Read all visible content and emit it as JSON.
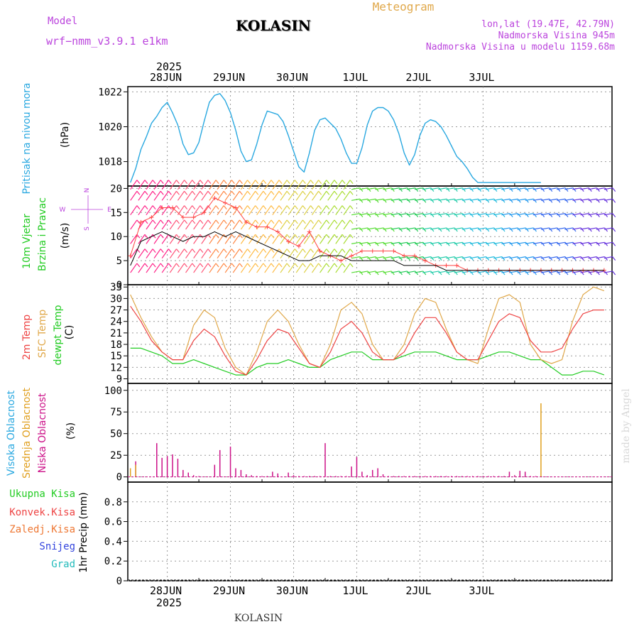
{
  "header": {
    "model_label": "Model",
    "model_name": "wrf−nmm_v3.9.1  e1km",
    "station": "KOLASIN",
    "product": "Meteogram",
    "coords": "lon,lat (19.47E, 42.79N)",
    "elevation": "Nadmorska Visina 945m",
    "model_elevation": "Nadmorska Visina u modelu 1159.68m"
  },
  "top_axis": {
    "year": "2025",
    "days": [
      "28JUN",
      "29JUN",
      "30JUN",
      "1JUL",
      "2JUL",
      "3JUL"
    ]
  },
  "bottom_axis": {
    "year": "2025",
    "days": [
      "28JUN",
      "29JUN",
      "30JUN",
      "1JUL",
      "2JUL",
      "3JUL"
    ]
  },
  "footer": "KOLASIN",
  "watermark": "made by Angel",
  "colors": {
    "pressure": "#29a8e0",
    "t2m": "#ee4444",
    "sfc": "#e0a84a",
    "dewpt": "#22cc22",
    "high_cloud": "#29a8e0",
    "mid_cloud": "#e0a020",
    "low_cloud": "#cc1188",
    "purple_text": "#bb44dd",
    "gust": "#ff4444",
    "wind_line": "#000000"
  },
  "panels": {
    "pressure": {
      "labels": [
        "Pritisak na nivou mora"
      ],
      "unit": "(hPa)",
      "ticks": [
        "1018",
        "1020",
        "1022"
      ]
    },
    "wind": {
      "labels": [
        "10m Vjetar",
        "Brzina i Pravac"
      ],
      "unit": "(m/s)",
      "ticks": [
        "0",
        "5",
        "10",
        "15",
        "20"
      ],
      "compass_n": "N",
      "compass_s": "S",
      "compass_w": "W",
      "compass_e": "E"
    },
    "temp": {
      "labels": [
        "2m Temp",
        "SFC Temp",
        "dewpt Temp"
      ],
      "unit": "(C)",
      "ticks": [
        "9",
        "12",
        "15",
        "18",
        "21",
        "24",
        "27",
        "30",
        "33"
      ]
    },
    "cloud": {
      "labels": [
        "Visoka Oblacnost",
        "Srednja Oblacnost",
        "Niska Oblacnost"
      ],
      "unit": "(%)",
      "ticks": [
        "0",
        "25",
        "50",
        "75",
        "100"
      ]
    },
    "precip": {
      "legend": [
        "Ukupna Kisa",
        "Konvek.Kisa",
        "Zaledj.Kisa",
        "Snijeg",
        "Grad"
      ],
      "unit": "1hr Precip (mm)",
      "ticks": [
        "0",
        "0.2",
        "0.4",
        "0.6",
        "0.8"
      ]
    }
  },
  "chart_data": [
    {
      "type": "line",
      "title": "",
      "ylabel": "Pritisak na nivou mora (hPa)",
      "ylim": [
        1016.6,
        1022.3
      ],
      "x_unit": "hours since 28JUN 00 UTC",
      "series": [
        {
          "name": "Pritisak na nivou mora",
          "x": [
            -14,
            -12,
            -10,
            -8,
            -6,
            -4,
            -2,
            0,
            2,
            4,
            6,
            8,
            10,
            12,
            14,
            16,
            18,
            20,
            22,
            24,
            26,
            28,
            30,
            32,
            34,
            36,
            38,
            40,
            42,
            44,
            46,
            48,
            50,
            52,
            54,
            56,
            58,
            60,
            62,
            64,
            66,
            68,
            70,
            72,
            74,
            76,
            78,
            80,
            82,
            84,
            86,
            88,
            90,
            92,
            94,
            96,
            98,
            100,
            102,
            104,
            106,
            108,
            110,
            112,
            114,
            116,
            118,
            120,
            122,
            124,
            126,
            128,
            130,
            132,
            134,
            136,
            138,
            140,
            142,
            144,
            146,
            148,
            150,
            152,
            154,
            156,
            158,
            160,
            162,
            164,
            166
          ],
          "y": [
            1016.8,
            1017.6,
            1018.7,
            1019.4,
            1020.2,
            1020.6,
            1021.1,
            1021.4,
            1020.8,
            1020.1,
            1019.0,
            1018.4,
            1018.5,
            1019.1,
            1020.3,
            1021.4,
            1021.8,
            1021.9,
            1021.5,
            1020.8,
            1019.8,
            1018.6,
            1018.0,
            1018.1,
            1019.0,
            1020.1,
            1020.9,
            1020.8,
            1020.7,
            1020.3,
            1019.5,
            1018.6,
            1017.7,
            1017.4,
            1018.5,
            1019.8,
            1020.4,
            1020.5,
            1020.2,
            1019.9,
            1019.3,
            1018.5,
            1017.9,
            1017.9,
            1018.8,
            1020.1,
            1020.9,
            1021.1,
            1021.1,
            1020.9,
            1020.4,
            1019.6,
            1018.5,
            1017.8,
            1018.4,
            1019.5,
            1020.2,
            1020.4,
            1020.3,
            1020.0,
            1019.5,
            1018.9,
            1018.3,
            1018.0,
            1017.6,
            1017.1,
            1016.8,
            1016.8,
            1016.8,
            1016.8,
            1016.8,
            1016.8,
            1016.8,
            1016.8,
            1016.8,
            1016.8,
            1016.8,
            1016.8,
            1016.8,
            1016.8,
            1016.8,
            1016.8,
            1016.8,
            1016.8,
            1016.8,
            1016.8,
            1016.8,
            1016.8,
            1016.8,
            1016.8,
            1016.8
          ]
        }
      ]
    },
    {
      "type": "line",
      "title": "",
      "ylabel": "10m Vjetar Brzina i Pravac (m/s)",
      "ylim": [
        0,
        20
      ],
      "series": [
        {
          "name": "wind",
          "x": [
            -14,
            -10,
            -6,
            -2,
            2,
            6,
            10,
            14,
            18,
            22,
            26,
            30,
            34,
            38,
            42,
            46,
            50,
            54,
            58,
            62,
            66,
            70,
            74,
            78,
            82,
            86,
            90,
            94,
            98,
            102,
            106,
            110,
            114,
            118,
            122,
            126,
            130,
            134,
            138,
            142,
            146,
            150,
            154,
            158,
            162,
            166
          ],
          "y": [
            4,
            9,
            10,
            11,
            10,
            9,
            10,
            10,
            11,
            10,
            11,
            10,
            9,
            8,
            7,
            6,
            5,
            5,
            6,
            6,
            6,
            5,
            5,
            5,
            5,
            5,
            4,
            4,
            4,
            4,
            3,
            3,
            3,
            3,
            3,
            3,
            3,
            3,
            3,
            3,
            3,
            3,
            3,
            3,
            3,
            3
          ]
        },
        {
          "name": "gust",
          "x": [
            -14,
            -10,
            -6,
            -2,
            2,
            6,
            10,
            14,
            18,
            22,
            26,
            30,
            34,
            38,
            42,
            46,
            50,
            54,
            58,
            62,
            66,
            70,
            74,
            78,
            82,
            86,
            90,
            94,
            98,
            102,
            106,
            110,
            114,
            118,
            122,
            126,
            130,
            134,
            138,
            142,
            146,
            150,
            154,
            158,
            162,
            166
          ],
          "y": [
            6,
            13,
            14,
            16,
            16,
            14,
            14,
            15,
            18,
            17,
            16,
            13,
            12,
            12,
            11,
            9,
            8,
            11,
            7,
            6,
            5,
            6,
            7,
            7,
            7,
            7,
            6,
            6,
            5,
            4,
            4,
            4,
            3,
            3,
            3,
            3,
            3,
            3,
            3,
            3,
            3,
            3,
            3,
            3,
            3,
            3
          ]
        }
      ]
    },
    {
      "type": "line",
      "title": "",
      "ylabel": "Temp (C)",
      "ylim": [
        8,
        34
      ],
      "series": [
        {
          "name": "2m Temp",
          "x": [
            -14,
            -10,
            -6,
            -2,
            2,
            6,
            10,
            14,
            18,
            22,
            26,
            30,
            34,
            38,
            42,
            46,
            50,
            54,
            58,
            62,
            66,
            70,
            74,
            78,
            82,
            86,
            90,
            94,
            98,
            102,
            106,
            110,
            114,
            118,
            122,
            126,
            130,
            134,
            138,
            142,
            146,
            150,
            154,
            158,
            162,
            166
          ],
          "y": [
            28,
            24,
            19,
            16,
            14,
            14,
            19,
            22,
            20,
            15,
            11,
            10,
            14,
            19,
            22,
            21,
            17,
            13,
            12,
            16,
            22,
            24,
            21,
            16,
            14,
            14,
            16,
            21,
            25,
            25,
            21,
            16,
            14,
            14,
            19,
            24,
            26,
            25,
            19,
            16,
            16,
            17,
            22,
            26,
            27,
            27
          ]
        },
        {
          "name": "SFC Temp",
          "x": [
            -14,
            -10,
            -6,
            -2,
            2,
            6,
            10,
            14,
            18,
            22,
            26,
            30,
            34,
            38,
            42,
            46,
            50,
            54,
            58,
            62,
            66,
            70,
            74,
            78,
            82,
            86,
            90,
            94,
            98,
            102,
            106,
            110,
            114,
            118,
            122,
            126,
            130,
            134,
            138,
            142,
            146,
            150,
            154,
            158,
            162,
            166
          ],
          "y": [
            31,
            25,
            20,
            16,
            14,
            14,
            23,
            27,
            25,
            17,
            12,
            10,
            16,
            24,
            27,
            24,
            18,
            13,
            12,
            18,
            27,
            29,
            26,
            18,
            14,
            14,
            18,
            26,
            30,
            29,
            22,
            16,
            14,
            13,
            22,
            30,
            31,
            29,
            18,
            14,
            13,
            14,
            24,
            31,
            33,
            32
          ]
        },
        {
          "name": "dewpt Temp",
          "x": [
            -14,
            -10,
            -6,
            -2,
            2,
            6,
            10,
            14,
            18,
            22,
            26,
            30,
            34,
            38,
            42,
            46,
            50,
            54,
            58,
            62,
            66,
            70,
            74,
            78,
            82,
            86,
            90,
            94,
            98,
            102,
            106,
            110,
            114,
            118,
            122,
            126,
            130,
            134,
            138,
            142,
            146,
            150,
            154,
            158,
            162,
            166
          ],
          "y": [
            17,
            17,
            16,
            15,
            13,
            13,
            14,
            13,
            12,
            11,
            10,
            10,
            12,
            13,
            13,
            14,
            13,
            12,
            12,
            14,
            15,
            16,
            16,
            14,
            14,
            14,
            15,
            16,
            16,
            16,
            15,
            14,
            14,
            14,
            15,
            16,
            16,
            15,
            14,
            14,
            12,
            10,
            10,
            11,
            11,
            10
          ]
        }
      ]
    },
    {
      "type": "bar",
      "title": "",
      "ylabel": "Oblacnost (%)",
      "ylim": [
        0,
        100
      ],
      "series": [
        {
          "name": "Niska Oblacnost",
          "x": [
            -12,
            -4,
            -2,
            0,
            2,
            4,
            6,
            8,
            10,
            12,
            14,
            18,
            20,
            24,
            26,
            28,
            30,
            32,
            34,
            36,
            38,
            40,
            42,
            46,
            48,
            50,
            52,
            54,
            56,
            58,
            60,
            62,
            64,
            66,
            68,
            70,
            72,
            74,
            76,
            78,
            80,
            82,
            84,
            86,
            88,
            90,
            92,
            94,
            96,
            98,
            100,
            102,
            104,
            106,
            108,
            110,
            112,
            114,
            116,
            118,
            120,
            122,
            124,
            126,
            128,
            130,
            132,
            134,
            136,
            138,
            140
          ],
          "y": [
            18,
            39,
            22,
            24,
            26,
            21,
            8,
            5,
            2,
            1,
            0,
            14,
            31,
            35,
            10,
            8,
            3,
            2,
            1,
            1,
            1,
            6,
            4,
            5,
            2,
            1,
            1,
            1,
            1,
            1,
            39,
            1,
            1,
            1,
            1,
            12,
            23,
            6,
            2,
            8,
            10,
            3,
            1,
            1,
            1,
            1,
            1,
            1,
            1,
            1,
            1,
            1,
            1,
            1,
            1,
            1,
            1,
            1,
            1,
            1,
            1,
            1,
            1,
            1,
            1,
            6,
            2,
            7,
            6,
            1,
            1
          ]
        },
        {
          "name": "Srednja Oblacnost",
          "x": [
            -14,
            -12,
            132,
            134,
            136,
            138,
            140,
            142,
            144,
            146,
            148,
            150,
            152,
            154,
            156,
            158,
            160,
            162,
            164,
            166
          ],
          "y": [
            10,
            14,
            0,
            0,
            0,
            0,
            0,
            85,
            0,
            0,
            0,
            0,
            0,
            0,
            0,
            0,
            0,
            0,
            0,
            0
          ]
        },
        {
          "name": "Visoka Oblacnost",
          "x": [
            -14
          ],
          "y": [
            0
          ]
        }
      ]
    },
    {
      "type": "bar",
      "title": "",
      "ylabel": "1hr Precip (mm)",
      "ylim": [
        0,
        1
      ],
      "series": [
        {
          "name": "Ukupna Kisa",
          "x": [
            0
          ],
          "y": [
            0
          ]
        }
      ]
    }
  ]
}
